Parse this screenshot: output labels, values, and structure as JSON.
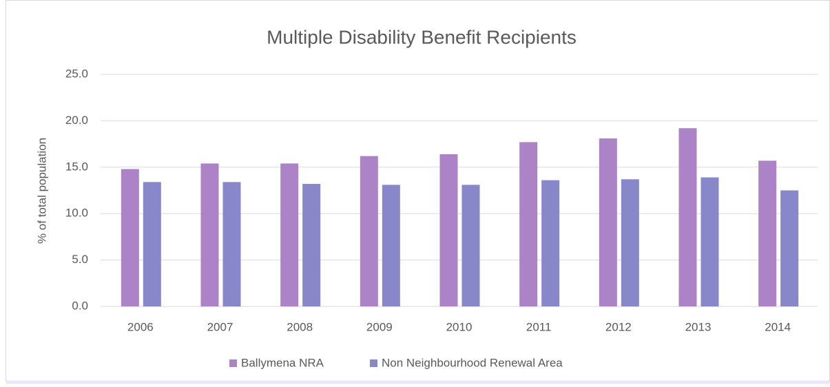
{
  "chart_data": {
    "type": "bar",
    "title": "Multiple Disability Benefit Recipients",
    "y_label": "% of total population",
    "categories": [
      "2006",
      "2007",
      "2008",
      "2009",
      "2010",
      "2011",
      "2012",
      "2013",
      "2014"
    ],
    "series": [
      {
        "name": "Ballymena NRA",
        "color": "#ab83c6",
        "values": [
          14.8,
          15.4,
          15.4,
          16.2,
          16.4,
          17.7,
          18.1,
          19.2,
          15.7
        ]
      },
      {
        "name": "Non Neighbourhood Renewal Area",
        "color": "#8787ca",
        "values": [
          13.4,
          13.4,
          13.2,
          13.1,
          13.1,
          13.6,
          13.7,
          13.9,
          12.5
        ]
      }
    ],
    "ylim": [
      0,
      25
    ],
    "yticks": [
      {
        "value": 0,
        "label": "0.0"
      },
      {
        "value": 5,
        "label": "5.0"
      },
      {
        "value": 10,
        "label": "10.0"
      },
      {
        "value": 15,
        "label": "15.0"
      },
      {
        "value": 20,
        "label": "20.0"
      },
      {
        "value": 25,
        "label": "25.0"
      }
    ],
    "grid": true,
    "legend": "bottom"
  }
}
